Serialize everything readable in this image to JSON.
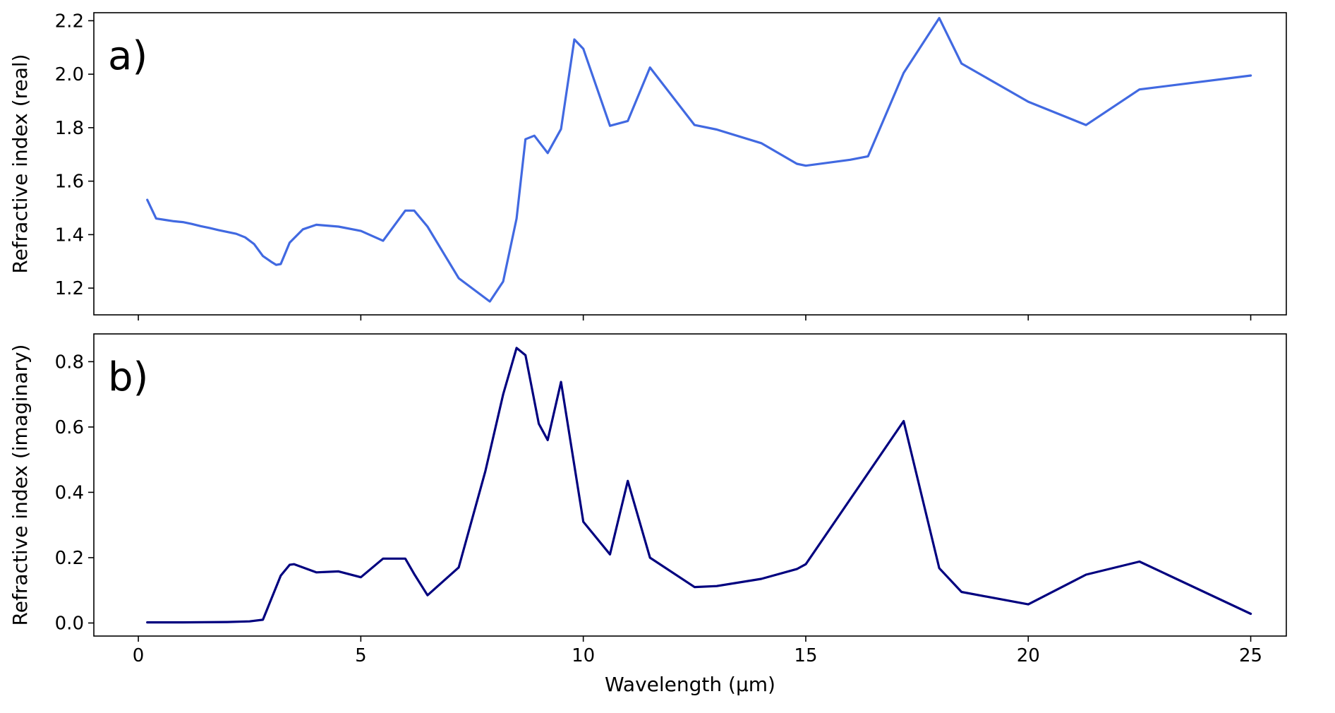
{
  "chart_data": [
    {
      "type": "line",
      "panel_label": "a)",
      "xlabel": "",
      "ylabel": "Refractive index (real)",
      "xlim": [
        -1.0,
        25.8
      ],
      "ylim": [
        1.1,
        2.23
      ],
      "xticks": [
        0,
        5,
        10,
        15,
        20,
        25
      ],
      "xtick_labels_visible": false,
      "yticks": [
        1.2,
        1.4,
        1.6,
        1.8,
        2.0,
        2.2
      ],
      "ytick_labels": [
        "1.2",
        "1.4",
        "1.6",
        "1.8",
        "2.0",
        "2.2"
      ],
      "grid": false,
      "color": "#4169e1",
      "series": [
        {
          "x": [
            0.2,
            0.4,
            0.6,
            0.8,
            1.0,
            1.2,
            1.4,
            1.6,
            1.8,
            2.0,
            2.2,
            2.4,
            2.6,
            2.8,
            3.0,
            3.1,
            3.2,
            3.4,
            3.7,
            4.0,
            4.5,
            5.0,
            5.5,
            6.0,
            6.2,
            6.5,
            7.2,
            7.9,
            8.2,
            8.5,
            8.7,
            8.9,
            9.2,
            9.5,
            9.8,
            10.0,
            10.6,
            11.0,
            11.5,
            12.5,
            13.0,
            14.0,
            14.8,
            15.0,
            16.0,
            16.4,
            17.2,
            18.0,
            18.5,
            20.0,
            21.3,
            22.5,
            25.0
          ],
          "y": [
            1.53,
            1.46,
            1.455,
            1.45,
            1.447,
            1.44,
            1.432,
            1.425,
            1.417,
            1.41,
            1.403,
            1.39,
            1.365,
            1.32,
            1.297,
            1.287,
            1.29,
            1.37,
            1.42,
            1.437,
            1.43,
            1.414,
            1.377,
            1.49,
            1.49,
            1.43,
            1.237,
            1.15,
            1.225,
            1.46,
            1.757,
            1.77,
            1.705,
            1.795,
            2.13,
            2.095,
            1.807,
            1.825,
            2.025,
            1.81,
            1.793,
            1.742,
            1.665,
            1.658,
            1.68,
            1.693,
            2.005,
            2.21,
            2.04,
            1.897,
            1.81,
            1.943,
            1.995
          ]
        }
      ]
    },
    {
      "type": "line",
      "panel_label": "b)",
      "xlabel": "Wavelength (μm)",
      "ylabel": "Refractive index (imaginary)",
      "xlim": [
        -1.0,
        25.8
      ],
      "ylim": [
        -0.04,
        0.885
      ],
      "xticks": [
        0,
        5,
        10,
        15,
        20,
        25
      ],
      "xtick_labels": [
        "0",
        "5",
        "10",
        "15",
        "20",
        "25"
      ],
      "yticks": [
        0.0,
        0.2,
        0.4,
        0.6,
        0.8
      ],
      "ytick_labels": [
        "0.0",
        "0.2",
        "0.4",
        "0.6",
        "0.8"
      ],
      "grid": false,
      "color": "#00007f",
      "series": [
        {
          "x": [
            0.2,
            1.0,
            2.0,
            2.5,
            2.8,
            3.2,
            3.4,
            3.5,
            4.0,
            4.5,
            5.0,
            5.5,
            6.0,
            6.2,
            6.5,
            7.2,
            7.8,
            8.2,
            8.5,
            8.7,
            9.0,
            9.2,
            9.5,
            10.0,
            10.6,
            11.0,
            11.5,
            12.5,
            13.0,
            14.0,
            14.8,
            15.0,
            17.2,
            18.0,
            18.5,
            20.0,
            21.3,
            22.5,
            25.0
          ],
          "y": [
            0.002,
            0.002,
            0.003,
            0.005,
            0.01,
            0.145,
            0.178,
            0.18,
            0.155,
            0.158,
            0.14,
            0.197,
            0.197,
            0.15,
            0.085,
            0.17,
            0.465,
            0.7,
            0.842,
            0.82,
            0.61,
            0.56,
            0.738,
            0.31,
            0.21,
            0.435,
            0.2,
            0.11,
            0.113,
            0.135,
            0.165,
            0.18,
            0.618,
            0.168,
            0.095,
            0.057,
            0.148,
            0.188,
            0.028
          ]
        }
      ]
    }
  ]
}
